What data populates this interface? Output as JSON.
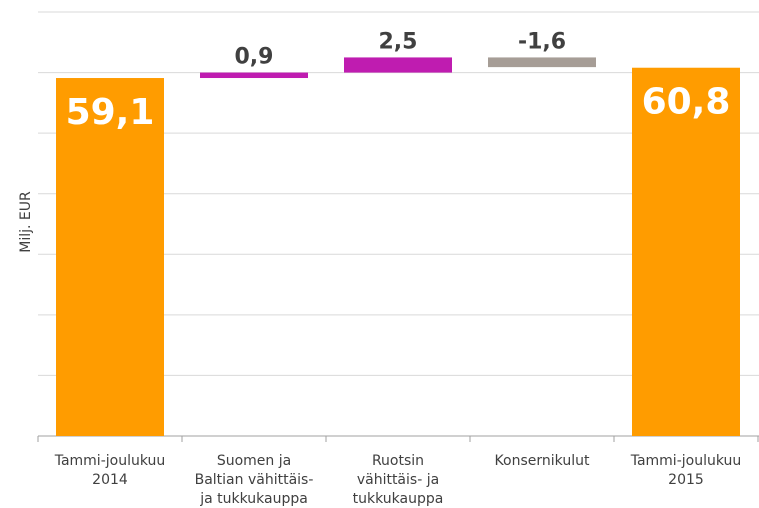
{
  "chart_data": {
    "type": "waterfall",
    "y_label": "Milj. EUR",
    "categories": [
      [
        "Tammi-joulukuu",
        "2014"
      ],
      [
        "Suomen ja",
        "Baltian vähittäis-",
        "ja tukkukauppa"
      ],
      [
        "Ruotsin",
        "vähittäis- ja",
        "tukkukauppa"
      ],
      [
        "Konsernikulut"
      ],
      [
        "Tammi-joulukuu",
        "2015"
      ]
    ],
    "values": [
      59.1,
      0.9,
      2.5,
      -1.6,
      60.8
    ],
    "value_labels": [
      "59,1",
      "0,9",
      "2,5",
      "-1,6",
      "60,8"
    ],
    "total": [
      true,
      false,
      false,
      false,
      true
    ],
    "colors": [
      "#ff9c00",
      "#bf1cb0",
      "#bf1cb0",
      "#a69d96",
      "#ff9c00"
    ],
    "ylim": [
      0,
      70
    ],
    "yticks": [
      0,
      10,
      20,
      30,
      40,
      50,
      60,
      70
    ],
    "grid": true
  }
}
